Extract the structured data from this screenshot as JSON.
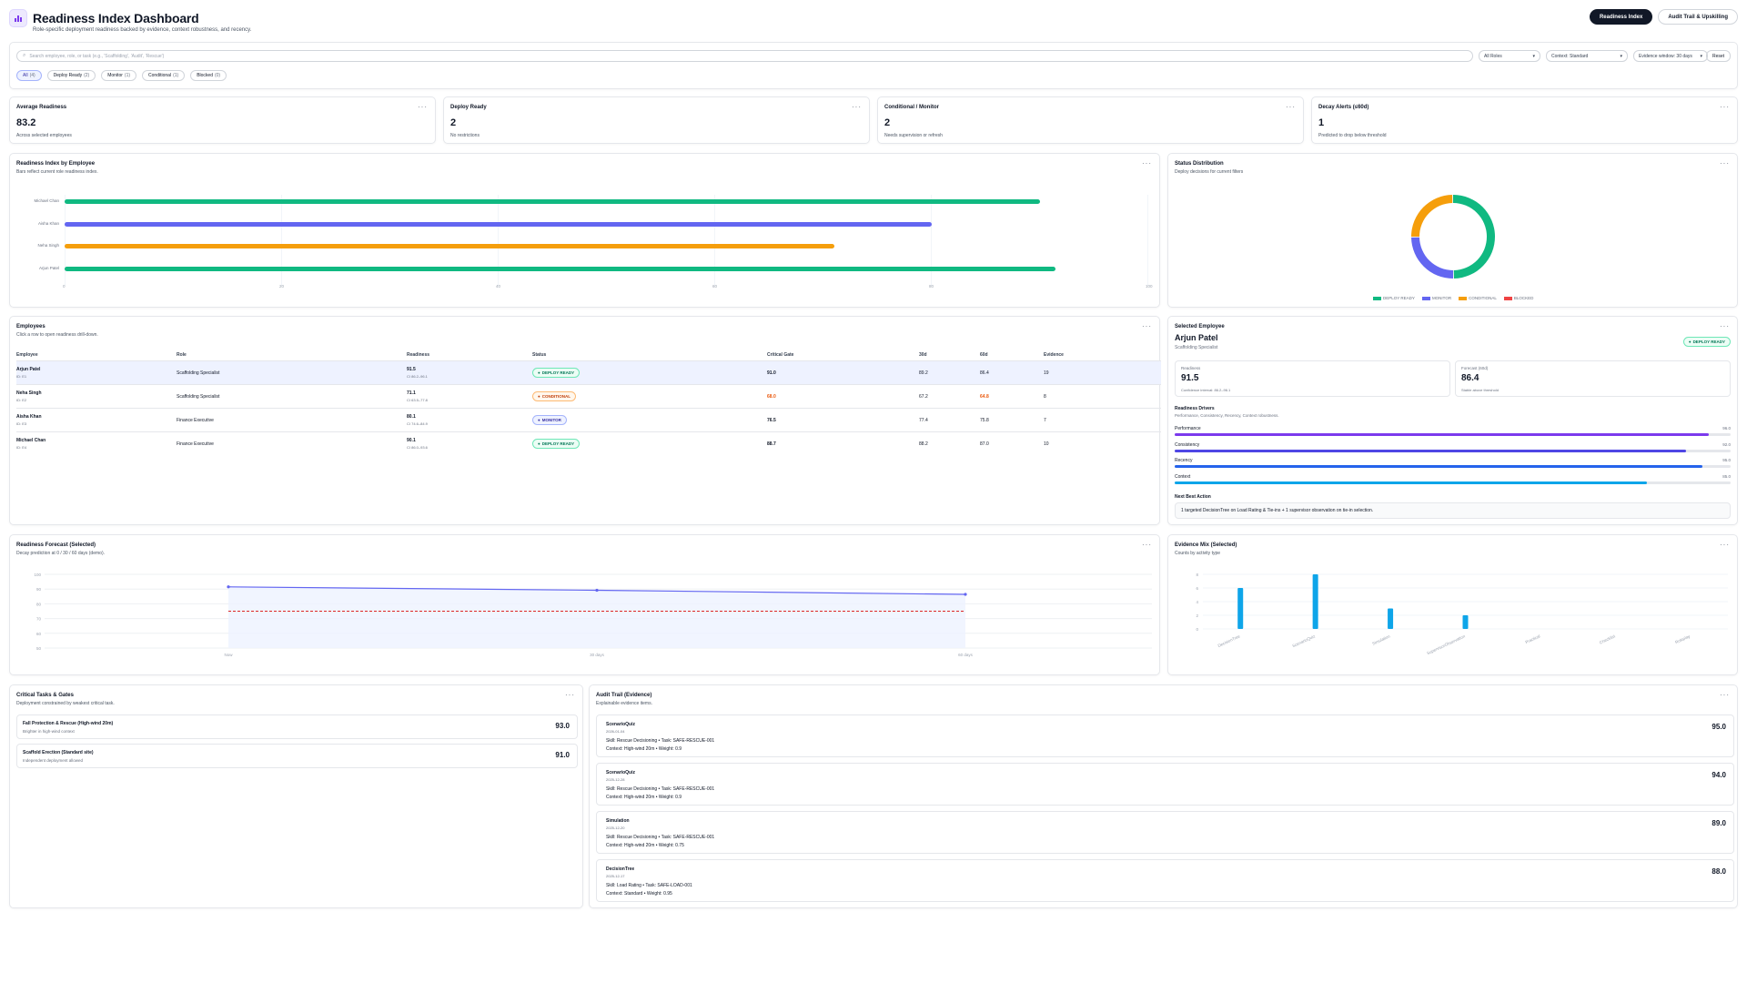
{
  "header": {
    "title": "Readiness Index Dashboard",
    "subtitle": "Role-specific deployment readiness backed by evidence, context robustness, and recency.",
    "tabs": [
      "Readiness Index",
      "Audit Trail & Upskilling"
    ]
  },
  "filters": {
    "search_placeholder": "Search employee, role, or task (e.g., 'Scaffolding', 'Audit', 'Rescue')",
    "role_select": "All Roles",
    "context_select": "Context: Standard",
    "window_select": "Evidence window: 30 days",
    "reset_label": "Reset",
    "chips": [
      {
        "label": "All",
        "count": "(4)"
      },
      {
        "label": "Deploy Ready",
        "count": "(2)"
      },
      {
        "label": "Monitor",
        "count": "(1)"
      },
      {
        "label": "Conditional",
        "count": "(1)"
      },
      {
        "label": "Blocked",
        "count": "(0)"
      }
    ]
  },
  "kpis": [
    {
      "title": "Average Readiness",
      "value": "83.2",
      "note": "Across selected employees"
    },
    {
      "title": "Deploy Ready",
      "value": "2",
      "note": "No restrictions"
    },
    {
      "title": "Conditional / Monitor",
      "value": "2",
      "note": "Needs supervision or refresh"
    },
    {
      "title": "Decay Alerts (≤60d)",
      "value": "1",
      "note": "Predicted to drop below threshold"
    }
  ],
  "readiness_chart": {
    "title": "Readiness Index by Employee",
    "subtitle": "Bars reflect current role readiness index.",
    "chart_data": {
      "type": "bar",
      "orientation": "horizontal",
      "categories": [
        "Michael Chan",
        "Aisha Khan",
        "Neha Singh",
        "Arjun Patel"
      ],
      "values": [
        90.1,
        80.1,
        71.1,
        91.5
      ],
      "colors": [
        "#10b981",
        "#6366f1",
        "#f59e0b",
        "#10b981"
      ],
      "xlim": [
        0,
        100
      ],
      "ticks": [
        "0",
        "20",
        "40",
        "60",
        "80",
        "100"
      ]
    }
  },
  "status_chart": {
    "title": "Status Distribution",
    "subtitle": "Deploy decisions for current filters",
    "chart_data": {
      "type": "pie",
      "labels": [
        "DEPLOY READY",
        "MONITOR",
        "CONDITIONAL",
        "BLOCKED"
      ],
      "values": [
        2,
        1,
        1,
        0
      ],
      "colors": [
        "#10b981",
        "#6366f1",
        "#f59e0b",
        "#ef4444"
      ]
    }
  },
  "employees": {
    "title": "Employees",
    "subtitle": "Click a row to open readiness drill-down.",
    "columns": [
      "Employee",
      "Role",
      "Readiness",
      "Status",
      "Critical Gate",
      "30d",
      "60d",
      "Evidence"
    ],
    "rows": [
      {
        "name": "Arjun Patel",
        "id": "ID: E1",
        "role": "Scaffolding Specialist",
        "readiness": "91.5",
        "ci": "CI 86.2–96.1",
        "status": "DEPLOY READY",
        "gate": "91.0",
        "d30": "89.2",
        "d60": "86.4",
        "evidence": "19"
      },
      {
        "name": "Neha Singh",
        "id": "ID: E2",
        "role": "Scaffolding Specialist",
        "readiness": "71.1",
        "ci": "CI 63.5–77.8",
        "status": "CONDITIONAL",
        "gate": "68.0",
        "d30": "67.2",
        "d60": "64.8",
        "evidence": "8"
      },
      {
        "name": "Aisha Khan",
        "id": "ID: E3",
        "role": "Finance Executive",
        "readiness": "80.1",
        "ci": "CI 74.6–84.9",
        "status": "MONITOR",
        "gate": "76.5",
        "d30": "77.4",
        "d60": "75.8",
        "evidence": "7"
      },
      {
        "name": "Michael Chan",
        "id": "ID: E4",
        "role": "Finance Executive",
        "readiness": "90.1",
        "ci": "CI 86.0–93.6",
        "status": "DEPLOY READY",
        "gate": "88.7",
        "d30": "88.2",
        "d60": "87.0",
        "evidence": "10"
      }
    ]
  },
  "selected": {
    "title": "Selected Employee",
    "name": "Arjun Patel",
    "role": "Scaffolding Specialist",
    "status": "DEPLOY READY",
    "readiness_label": "Readiness",
    "readiness_value": "91.5",
    "readiness_note": "Confidence interval: 86.2–96.1",
    "forecast_label": "Forecast (60d)",
    "forecast_value": "86.4",
    "forecast_note": "Stable above threshold",
    "drivers_title": "Readiness Drivers",
    "drivers_sub": "Performance, Consistency, Recency, Context robustness.",
    "drivers": [
      {
        "label": "Performance",
        "value": "96.0",
        "fraction": 0.96,
        "color": "#7c3aed"
      },
      {
        "label": "Consistency",
        "value": "92.0",
        "fraction": 0.92,
        "color": "#4f46e5"
      },
      {
        "label": "Recency",
        "value": "95.0",
        "fraction": 0.95,
        "color": "#2563eb"
      },
      {
        "label": "Context",
        "value": "85.0",
        "fraction": 0.85,
        "color": "#0ea5e9"
      }
    ],
    "next_action_title": "Next Best Action",
    "next_action": "1 targeted DecisionTree on Load Rating & Tie-ins + 1 supervisor observation on tie-in selection."
  },
  "forecast_chart": {
    "title": "Readiness Forecast (Selected)",
    "subtitle": "Decay prediction at 0 / 30 / 60 days (demo).",
    "chart_data": {
      "type": "line",
      "x": [
        "Now",
        "30 days",
        "60 days"
      ],
      "series": [
        {
          "values": [
            91.5,
            89.2,
            86.4
          ],
          "color": "#6366f1"
        }
      ],
      "threshold": 75,
      "ylim": [
        50,
        100
      ],
      "yticks": [
        "100",
        "90",
        "80",
        "70",
        "60",
        "50"
      ]
    }
  },
  "evidence_chart": {
    "title": "Evidence Mix (Selected)",
    "subtitle": "Counts by activity type",
    "chart_data": {
      "type": "bar",
      "categories": [
        "DecisionTree",
        "ScenarioQuiz",
        "Simulation",
        "SupervisorObservation",
        "Practical",
        "Checklist",
        "Roleplay"
      ],
      "values": [
        6,
        8,
        3,
        2,
        0,
        0,
        0
      ],
      "ylim": [
        0,
        8
      ],
      "yticks": [
        "8",
        "6",
        "4",
        "2",
        "0"
      ],
      "color": "#0ea5e9"
    }
  },
  "critical_tasks": {
    "title": "Critical Tasks & Gates",
    "subtitle": "Deployment constrained by weakest critical task.",
    "items": [
      {
        "title": "Fall Protection & Rescue (High-wind 20m)",
        "sub": "Brighter in high-wind context",
        "value": "93.0"
      },
      {
        "title": "Scaffold Erection (Standard site)",
        "sub": "Independent deployment allowed",
        "value": "91.0"
      }
    ]
  },
  "audit": {
    "title": "Audit Trail (Evidence)",
    "subtitle": "Explainable evidence items.",
    "items": [
      {
        "type": "ScenarioQuiz",
        "date": "2026-01-04",
        "line1": "Skill: Rescue Decisioning • Task: SAFE-RESCUE-001",
        "line2": "Context: High-wind 20m • Weight: 0.9",
        "value": "95.0"
      },
      {
        "type": "ScenarioQuiz",
        "date": "2025-12-28",
        "line1": "Skill: Rescue Decisioning • Task: SAFE-RESCUE-001",
        "line2": "Context: High-wind 20m • Weight: 0.9",
        "value": "94.0"
      },
      {
        "type": "Simulation",
        "date": "2025-12-20",
        "line1": "Skill: Rescue Decisioning • Task: SAFE-RESCUE-001",
        "line2": "Context: High-wind 20m • Weight: 0.75",
        "value": "89.0"
      },
      {
        "type": "DecisionTree",
        "date": "2025-12-17",
        "line1": "Skill: Load Rating • Task: SAFE-LOAD-001",
        "line2": "Context: Standard • Weight: 0.95",
        "value": "88.0"
      }
    ]
  }
}
